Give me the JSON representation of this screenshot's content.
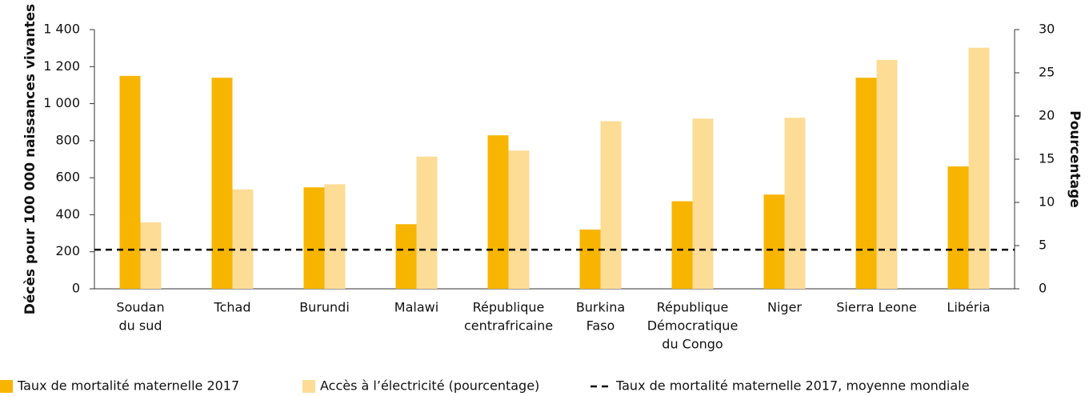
{
  "chart_data": {
    "type": "bar",
    "ylabel": "Décès pour 100 000 naissances vivantes",
    "y2label": "Pourcentage",
    "categories": [
      [
        "Soudan",
        "du sud"
      ],
      [
        "Tchad"
      ],
      [
        "Burundi"
      ],
      [
        "Malawi"
      ],
      [
        "République",
        "centrafricaine"
      ],
      [
        "Burkina",
        "Faso"
      ],
      [
        "République",
        "Démocratique",
        "du Congo"
      ],
      [
        "Niger"
      ],
      [
        "Sierra Leone"
      ],
      [
        "Libéria"
      ]
    ],
    "series": [
      {
        "name": "Taux de mortalité maternelle 2017",
        "color": "#f7b500",
        "axis": "y",
        "values": [
          1150,
          1140,
          548,
          349,
          829,
          320,
          473,
          509,
          1140,
          661
        ]
      },
      {
        "name": "Accès à l’électricité (pourcentage)",
        "color": "#fddc96",
        "axis": "y2",
        "values": [
          7.7,
          11.5,
          12.1,
          15.3,
          16.0,
          19.4,
          19.7,
          19.8,
          26.5,
          27.9
        ]
      }
    ],
    "reference_line": {
      "name": "Taux de mortalité maternelle 2017, moyenne mondiale",
      "value": 211,
      "color": "#000000",
      "axis": "y"
    },
    "ylim": [
      0,
      1400
    ],
    "yticks": [
      0,
      200,
      400,
      600,
      800,
      {
        "value": 1000,
        "label": "1 000"
      },
      {
        "value": 1200,
        "label": "1 200"
      },
      {
        "value": 1400,
        "label": "1 400"
      }
    ],
    "y2lim": [
      0,
      30
    ],
    "y2ticks": [
      0,
      5,
      10,
      15,
      20,
      25,
      30
    ]
  }
}
